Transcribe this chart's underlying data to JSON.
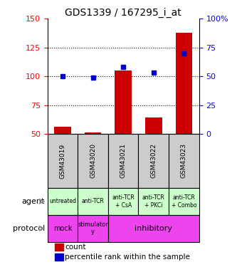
{
  "title": "GDS1339 / 167295_i_at",
  "samples": [
    "GSM43019",
    "GSM43020",
    "GSM43021",
    "GSM43022",
    "GSM43023"
  ],
  "count_values": [
    56,
    51,
    105,
    64,
    138
  ],
  "percentile_values": [
    50,
    49,
    58,
    53,
    70
  ],
  "count_base": 50,
  "left_ylim": [
    50,
    150
  ],
  "left_yticks": [
    50,
    75,
    100,
    125,
    150
  ],
  "right_ylim": [
    0,
    100
  ],
  "right_yticks": [
    0,
    25,
    50,
    75,
    100
  ],
  "bar_color": "#cc0000",
  "dot_color": "#0000cc",
  "agent_labels": [
    "untreated",
    "anti-TCR",
    "anti-TCR\n+ CsA",
    "anti-TCR\n+ PKCi",
    "anti-TCR\n+ Combo"
  ],
  "agent_bg": "#ccffcc",
  "sample_bg": "#cccccc",
  "protocol_bg": "#ee44ee",
  "grid_dotted_values": [
    75,
    100,
    125
  ],
  "legend_count_color": "#cc0000",
  "legend_pct_color": "#0000cc",
  "height_ratios": [
    3.2,
    1.5,
    0.75,
    0.75,
    0.55
  ]
}
